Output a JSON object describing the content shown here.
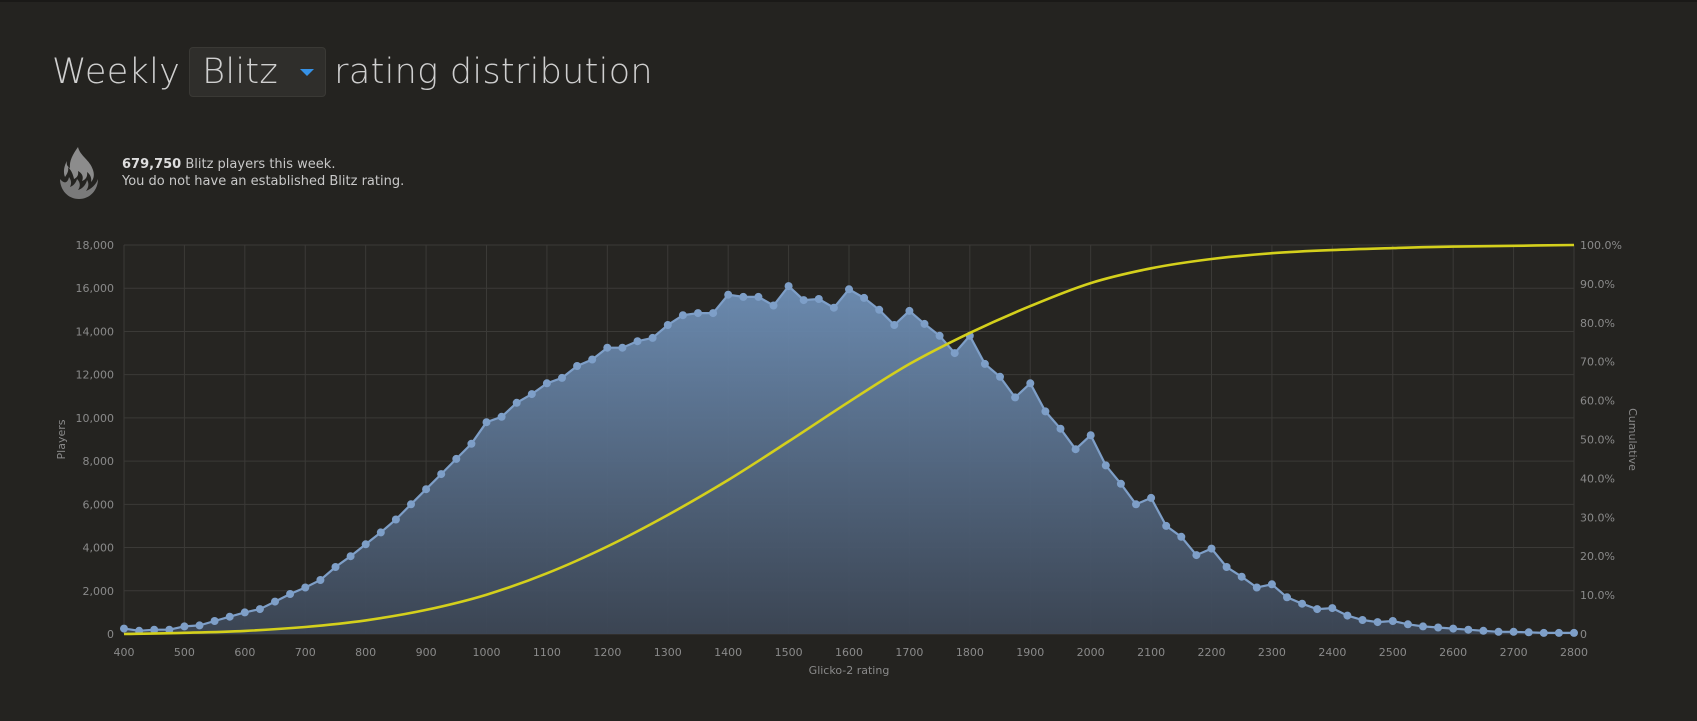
{
  "header": {
    "title_prefix": "Weekly",
    "variant": "Blitz",
    "title_suffix": "rating distribution"
  },
  "info": {
    "player_count": "679,750",
    "count_suffix": "Blitz players this week.",
    "rating_note": "You do not have an established Blitz rating.",
    "icon": "flame-icon"
  },
  "colors": {
    "players_line": "#7e9fc8",
    "cumulative_line": "#d4d01c",
    "background": "#242320"
  },
  "chart_data": {
    "type": "area",
    "xlabel": "Glicko-2 rating",
    "ylabel": "Players",
    "y2label": "Cumulative",
    "xlim": [
      400,
      2800
    ],
    "ylim": [
      0,
      18000
    ],
    "y2lim": [
      0,
      100
    ],
    "grid": true,
    "x_ticks": [
      "400",
      "500",
      "600",
      "700",
      "800",
      "900",
      "1000",
      "1100",
      "1200",
      "1300",
      "1400",
      "1500",
      "1600",
      "1700",
      "1800",
      "1900",
      "2000",
      "2100",
      "2200",
      "2300",
      "2400",
      "2500",
      "2600",
      "2700",
      "2800"
    ],
    "y_ticks": [
      "0",
      "2,000",
      "4,000",
      "6,000",
      "8,000",
      "10,000",
      "12,000",
      "14,000",
      "16,000",
      "18,000"
    ],
    "y2_ticks": [
      "0",
      "10.0%",
      "20.0%",
      "30.0%",
      "40.0%",
      "50.0%",
      "60.0%",
      "70.0%",
      "80.0%",
      "90.0%",
      "100.0%"
    ],
    "series": [
      {
        "name": "Players",
        "axis": "left",
        "x": [
          400,
          425,
          450,
          475,
          500,
          525,
          550,
          575,
          600,
          625,
          650,
          675,
          700,
          725,
          750,
          775,
          800,
          825,
          850,
          875,
          900,
          925,
          950,
          975,
          1000,
          1025,
          1050,
          1075,
          1100,
          1125,
          1150,
          1175,
          1200,
          1225,
          1250,
          1275,
          1300,
          1325,
          1350,
          1375,
          1400,
          1425,
          1450,
          1475,
          1500,
          1525,
          1550,
          1575,
          1600,
          1625,
          1650,
          1675,
          1700,
          1725,
          1750,
          1775,
          1800,
          1825,
          1850,
          1875,
          1900,
          1925,
          1950,
          1975,
          2000,
          2025,
          2050,
          2075,
          2100,
          2125,
          2150,
          2175,
          2200,
          2225,
          2250,
          2275,
          2300,
          2325,
          2350,
          2375,
          2400,
          2425,
          2450,
          2475,
          2500,
          2525,
          2550,
          2575,
          2600,
          2625,
          2650,
          2675,
          2700,
          2725,
          2750,
          2775,
          2800
        ],
        "values": [
          250,
          150,
          200,
          200,
          350,
          400,
          600,
          800,
          1000,
          1150,
          1500,
          1850,
          2150,
          2500,
          3100,
          3600,
          4150,
          4700,
          5300,
          6000,
          6700,
          7400,
          8100,
          8800,
          9800,
          10050,
          10700,
          11100,
          11600,
          11850,
          12400,
          12700,
          13250,
          13250,
          13550,
          13700,
          14300,
          14750,
          14850,
          14850,
          15700,
          15600,
          15600,
          15200,
          16100,
          15450,
          15500,
          15100,
          15950,
          15550,
          15000,
          14300,
          14950,
          14350,
          13800,
          13000,
          13800,
          12500,
          11900,
          10950,
          11600,
          10300,
          9500,
          8550,
          9200,
          7800,
          6950,
          6000,
          6300,
          5000,
          4500,
          3650,
          3950,
          3100,
          2650,
          2150,
          2300,
          1700,
          1400,
          1150,
          1200,
          850,
          650,
          550,
          600,
          450,
          350,
          300,
          250,
          200,
          150,
          100,
          100,
          80,
          50,
          50,
          50
        ]
      },
      {
        "name": "Cumulative",
        "axis": "right",
        "x": [
          400,
          500,
          600,
          700,
          800,
          900,
          1000,
          1100,
          1200,
          1300,
          1400,
          1500,
          1600,
          1700,
          1800,
          1900,
          2000,
          2100,
          2200,
          2300,
          2400,
          2500,
          2600,
          2700,
          2800
        ],
        "values": [
          0.0,
          0.3,
          0.8,
          1.8,
          3.5,
          6.2,
          10.1,
          15.6,
          22.5,
          30.6,
          39.6,
          49.5,
          59.7,
          69.4,
          77.4,
          84.3,
          90.2,
          94.0,
          96.4,
          97.9,
          98.7,
          99.2,
          99.6,
          99.8,
          100.0
        ]
      }
    ]
  }
}
